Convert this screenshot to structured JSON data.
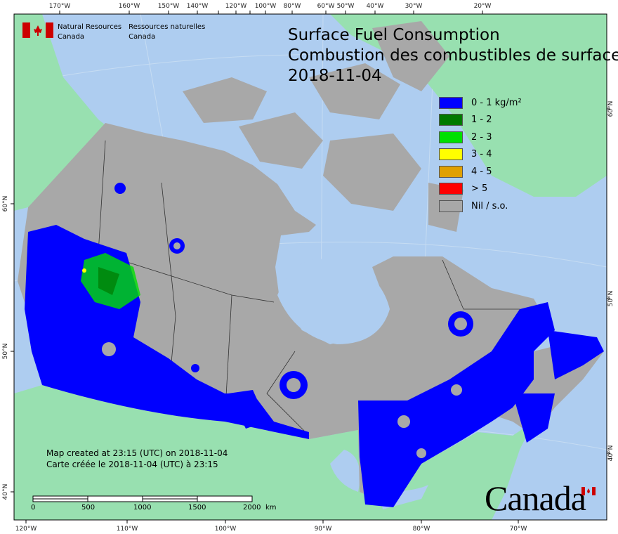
{
  "header": {
    "dept_en": [
      "Natural Resources",
      "Canada"
    ],
    "dept_fr": [
      "Ressources naturelles",
      "Canada"
    ],
    "title_en": "Surface Fuel Consumption",
    "title_fr": "Combustion des combustibles de surface",
    "date": "2018-11-04"
  },
  "legend": [
    {
      "label": "0 - 1 kg/m²",
      "color": "#0000ff"
    },
    {
      "label": "1 - 2",
      "color": "#007a00"
    },
    {
      "label": "2 - 3",
      "color": "#00e000"
    },
    {
      "label": "3 - 4",
      "color": "#ffff00"
    },
    {
      "label": "4 - 5",
      "color": "#e0a000"
    },
    {
      "label": "> 5",
      "color": "#ff0000"
    },
    {
      "label": "Nil / s.o.",
      "color": "#a8a8a8"
    }
  ],
  "axes": {
    "top": [
      "170°W",
      "160°W",
      "150°W",
      "140°W",
      "120°W",
      "100°W",
      "80°W",
      "60°W",
      "50°W",
      "40°W",
      "30°W",
      "20°W"
    ],
    "bottom": [
      "120°W",
      "110°W",
      "100°W",
      "90°W",
      "80°W",
      "70°W"
    ],
    "left": [
      "60°N",
      "50°N",
      "40°N"
    ],
    "right": [
      "60°N",
      "50°N",
      "40°N"
    ]
  },
  "credits": {
    "line_en": "Map created at 23:15 (UTC) on 2018-11-04",
    "line_fr": "Carte créée le 2018-11-04 (UTC) à 23:15"
  },
  "scale": {
    "labels": [
      "0",
      "500",
      "1000",
      "1500",
      "2000"
    ],
    "unit": "km"
  },
  "wordmark": "Canada",
  "colors": {
    "ocean": "#aecdf0",
    "foreign_land": "#98e0b0",
    "canada_nil": "#a8a8a8",
    "fuel_low": "#0000ff",
    "flag_red": "#cc0000"
  }
}
